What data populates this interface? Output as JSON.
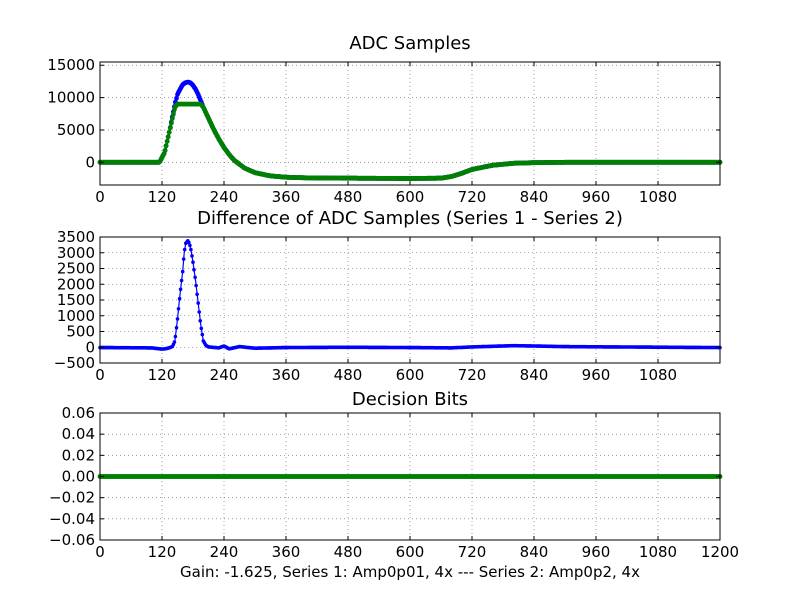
{
  "figure": {
    "caption": "Gain: -1.625, Series 1: Amp0p01, 4x --- Series 2: Amp0p2, 4x"
  },
  "colors": {
    "series1": "#0000ff",
    "series2": "#008000"
  },
  "chart_data": [
    {
      "id": "adc",
      "type": "scatter",
      "title": "ADC Samples",
      "xlim": [
        0,
        1200
      ],
      "ylim": [
        -3500,
        15500
      ],
      "xticks": [
        0,
        120,
        240,
        360,
        480,
        600,
        720,
        840,
        960,
        1080
      ],
      "xtick_labels": [
        "0",
        "120",
        "240",
        "360",
        "480",
        "600",
        "720",
        "840",
        "960",
        "1080"
      ],
      "yticks": [
        0,
        5000,
        10000,
        15000
      ],
      "ytick_labels": [
        "0",
        "5000",
        "10000",
        "15000"
      ],
      "grid": true,
      "series": [
        {
          "name": "Series 1",
          "color": "#0000ff",
          "x": [
            0,
            115,
            125,
            135,
            145,
            150,
            155,
            160,
            165,
            170,
            175,
            180,
            185,
            190,
            195,
            200,
            210,
            220,
            230,
            240,
            250,
            260,
            280,
            300,
            330,
            360,
            400,
            480,
            600,
            660,
            680,
            700,
            720,
            760,
            800,
            840,
            900,
            1000,
            1100,
            1200
          ],
          "y": [
            0,
            0,
            1500,
            5000,
            9000,
            10500,
            11300,
            12000,
            12300,
            12400,
            12300,
            11900,
            11300,
            10500,
            9500,
            8500,
            6800,
            5100,
            3600,
            2300,
            1200,
            300,
            -900,
            -1600,
            -2100,
            -2300,
            -2400,
            -2450,
            -2500,
            -2450,
            -2200,
            -1700,
            -1100,
            -450,
            -150,
            -50,
            0,
            0,
            0,
            0
          ]
        },
        {
          "name": "Series 2",
          "color": "#008000",
          "x": [
            0,
            115,
            125,
            135,
            145,
            150,
            155,
            160,
            165,
            170,
            175,
            180,
            185,
            190,
            195,
            200,
            210,
            220,
            230,
            240,
            250,
            260,
            280,
            300,
            330,
            360,
            400,
            480,
            600,
            660,
            680,
            700,
            720,
            760,
            800,
            840,
            900,
            1000,
            1100,
            1200
          ],
          "y": [
            0,
            0,
            1500,
            5000,
            8500,
            9000,
            9000,
            9000,
            9000,
            9000,
            9000,
            9000,
            9000,
            9000,
            9000,
            8500,
            6800,
            5100,
            3600,
            2300,
            1200,
            300,
            -900,
            -1600,
            -2100,
            -2300,
            -2400,
            -2450,
            -2500,
            -2450,
            -2200,
            -1700,
            -1100,
            -450,
            -150,
            -50,
            0,
            0,
            0,
            0
          ]
        }
      ]
    },
    {
      "id": "diff",
      "type": "scatter",
      "title": "Difference of ADC Samples (Series 1 - Series 2)",
      "xlim": [
        0,
        1200
      ],
      "ylim": [
        -500,
        3500
      ],
      "xticks": [
        0,
        120,
        240,
        360,
        480,
        600,
        720,
        840,
        960,
        1080
      ],
      "xtick_labels": [
        "0",
        "120",
        "240",
        "360",
        "480",
        "600",
        "720",
        "840",
        "960",
        "1080"
      ],
      "yticks": [
        -500,
        0,
        500,
        1000,
        1500,
        2000,
        2500,
        3000,
        3500
      ],
      "ytick_labels": [
        "−500",
        "0",
        "500",
        "1000",
        "1500",
        "2000",
        "2500",
        "3000",
        "3500"
      ],
      "grid": true,
      "series": [
        {
          "name": "Series 1 - Series 2",
          "color": "#0000ff",
          "x": [
            0,
            100,
            120,
            130,
            140,
            145,
            150,
            155,
            160,
            163,
            166,
            170,
            173,
            176,
            180,
            185,
            190,
            195,
            200,
            205,
            210,
            230,
            240,
            250,
            270,
            300,
            360,
            480,
            600,
            680,
            720,
            760,
            800,
            840,
            900,
            1000,
            1100,
            1200
          ],
          "y": [
            -10,
            -20,
            -60,
            -40,
            20,
            200,
            900,
            1700,
            2400,
            3000,
            3300,
            3380,
            3300,
            3100,
            2700,
            2100,
            1400,
            700,
            200,
            60,
            10,
            -20,
            40,
            -50,
            20,
            -30,
            -10,
            0,
            -10,
            -20,
            10,
            30,
            50,
            40,
            20,
            10,
            0,
            -10
          ]
        }
      ]
    },
    {
      "id": "decision",
      "type": "scatter",
      "title": "Decision Bits",
      "xlim": [
        0,
        1200
      ],
      "ylim": [
        -0.06,
        0.06
      ],
      "xticks": [
        0,
        120,
        240,
        360,
        480,
        600,
        720,
        840,
        960,
        1080,
        1200
      ],
      "xtick_labels": [
        "0",
        "120",
        "240",
        "360",
        "480",
        "600",
        "720",
        "840",
        "960",
        "1080",
        "1200"
      ],
      "yticks": [
        -0.06,
        -0.04,
        -0.02,
        0.0,
        0.02,
        0.04,
        0.06
      ],
      "ytick_labels": [
        "−0.06",
        "−0.04",
        "−0.02",
        "0.00",
        "0.02",
        "0.04",
        "0.06"
      ],
      "grid": true,
      "series": [
        {
          "name": "Decision Bits",
          "color": "#008000",
          "x": [
            0,
            1200
          ],
          "y": [
            0,
            0
          ]
        }
      ]
    }
  ]
}
